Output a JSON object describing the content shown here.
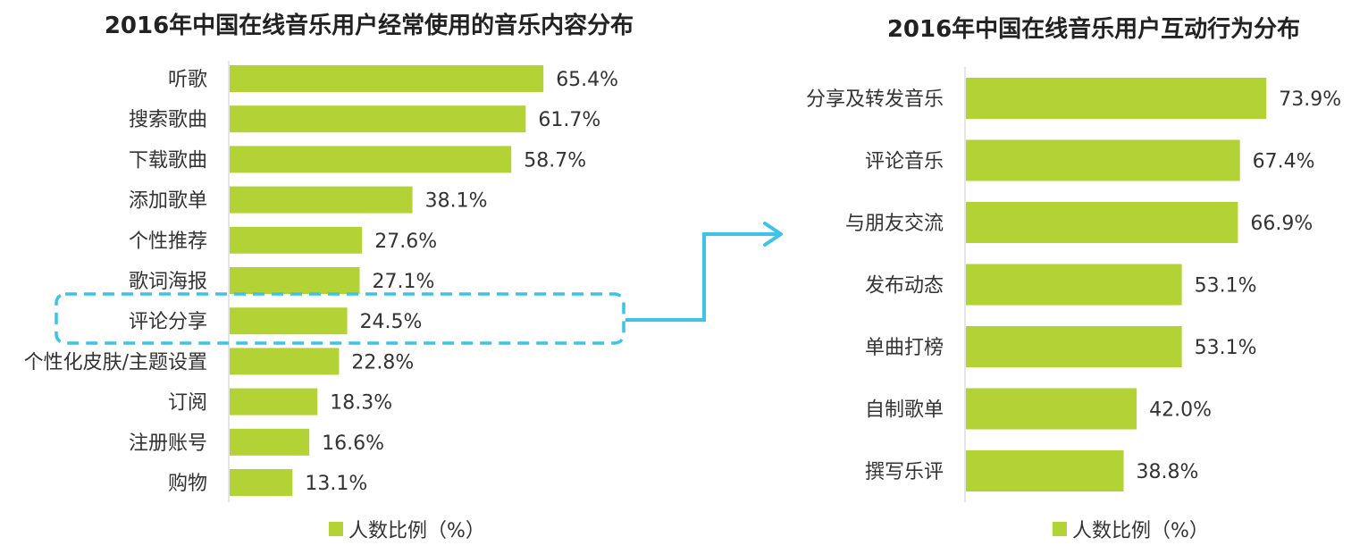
{
  "chart_data": [
    {
      "type": "bar",
      "orientation": "horizontal",
      "title": "2016年中国在线音乐用户经常使用的音乐内容分布",
      "categories": [
        "听歌",
        "搜索歌曲",
        "下载歌曲",
        "添加歌单",
        "个性推荐",
        "歌词海报",
        "评论分享",
        "个性化皮肤/主题设置",
        "订阅",
        "注册账号",
        "购物"
      ],
      "series": [
        {
          "name": "人数比例（%）",
          "values": [
            65.4,
            61.7,
            58.7,
            38.1,
            27.6,
            27.1,
            24.5,
            22.8,
            18.3,
            16.6,
            13.1
          ]
        }
      ],
      "value_labels": [
        "65.4%",
        "61.7%",
        "58.7%",
        "38.1%",
        "27.6%",
        "27.1%",
        "24.5%",
        "22.8%",
        "18.3%",
        "16.6%",
        "13.1%"
      ],
      "highlighted_category": "评论分享",
      "legend": "bottom",
      "grid": false
    },
    {
      "type": "bar",
      "orientation": "horizontal",
      "title": "2016年中国在线音乐用户互动行为分布",
      "categories": [
        "分享及转发音乐",
        "评论音乐",
        "与朋友交流",
        "发布动态",
        "单曲打榜",
        "自制歌单",
        "撰写乐评"
      ],
      "series": [
        {
          "name": "人数比例（%）",
          "values": [
            73.9,
            67.4,
            66.9,
            53.1,
            53.1,
            42.0,
            38.8
          ]
        }
      ],
      "value_labels": [
        "73.9%",
        "67.4%",
        "66.9%",
        "53.1%",
        "53.1%",
        "42.0%",
        "38.8%"
      ],
      "legend": "bottom",
      "grid": false
    }
  ],
  "colors": {
    "bar": "#b2d235",
    "highlight": "#3cc3e6",
    "axis": "#cccccc",
    "text": "#333333"
  }
}
